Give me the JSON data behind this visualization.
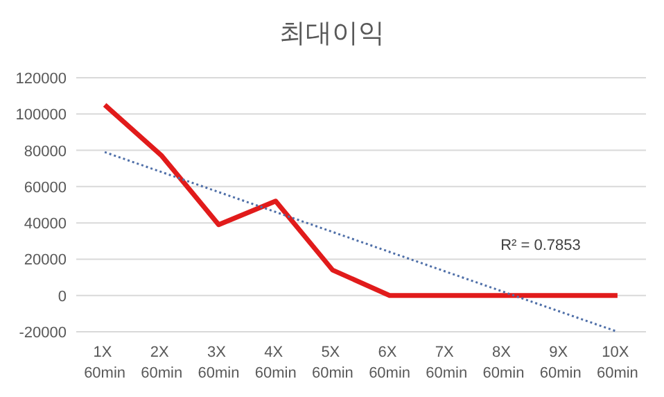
{
  "chart_data": {
    "type": "line",
    "title": "최대이익",
    "categories": [
      "1X 60min",
      "2X 60min",
      "3X 60min",
      "4X 60min",
      "5X 60min",
      "6X 60min",
      "7X 60min",
      "8X 60min",
      "9X 60min",
      "10X 60min"
    ],
    "series": [
      {
        "color": "#e11b1b",
        "line_style": "solid",
        "values": [
          105000,
          77000,
          39000,
          52000,
          14000,
          0,
          0,
          0,
          0,
          0
        ]
      },
      {
        "color": "#4f6fa8",
        "line_style": "dotted",
        "values": [
          79000,
          68000,
          57000,
          46000,
          35000,
          24000,
          13000,
          2000,
          -9000,
          -20000
        ]
      }
    ],
    "ylim": [
      -20000,
      120000
    ],
    "yticks": [
      -20000,
      0,
      20000,
      40000,
      60000,
      80000,
      100000,
      120000
    ],
    "grid": "y",
    "marker": "none",
    "annotations": [
      "R² = 0.7853"
    ]
  }
}
